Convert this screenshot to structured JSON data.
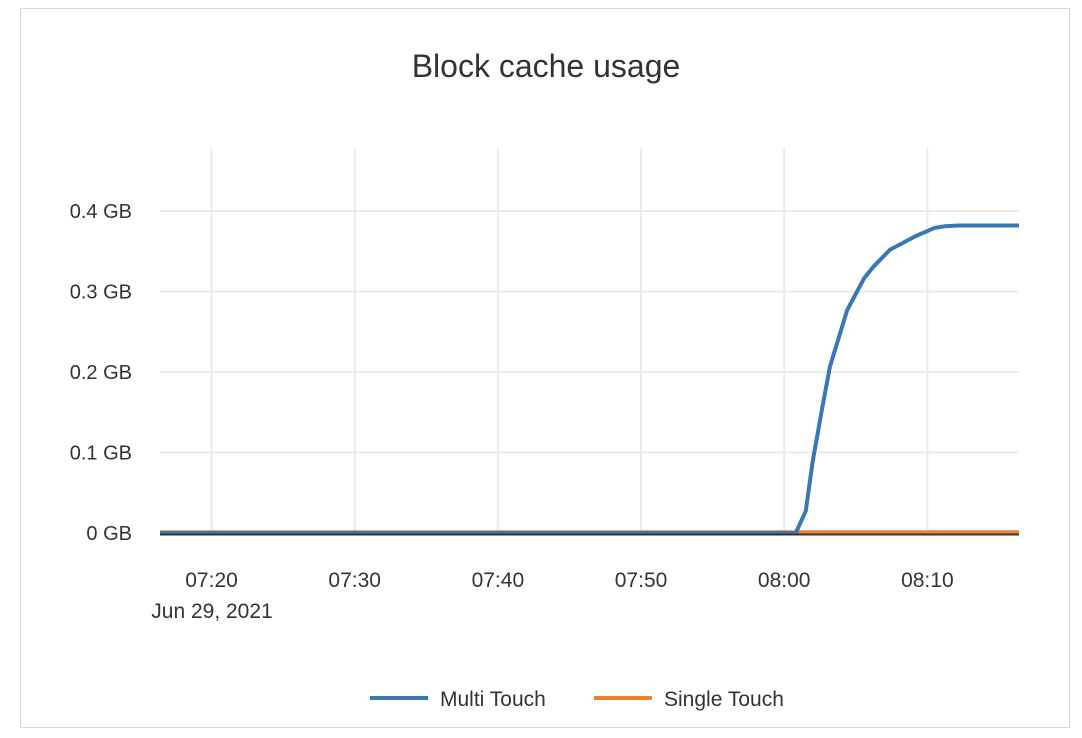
{
  "chart_data": {
    "type": "line",
    "title": "Block cache usage",
    "xlabel": "",
    "ylabel": "",
    "date_label": "Jun 29, 2021",
    "xlim": [
      "07:16:24",
      "08:16:24"
    ],
    "ylim": [
      0,
      0.4
    ],
    "y_unit": "GB",
    "x_ticks": [
      "07:20",
      "07:30",
      "07:40",
      "07:50",
      "08:00",
      "08:10"
    ],
    "y_ticks": [
      0,
      0.1,
      0.2,
      0.3,
      0.4
    ],
    "y_tick_labels": [
      "0 GB",
      "0.1 GB",
      "0.2 GB",
      "0.3 GB",
      "0.4 GB"
    ],
    "grid": true,
    "legend_position": "bottom",
    "series": [
      {
        "name": "Multi Touch",
        "color": "#3a78b5",
        "points": [
          [
            "07:16:24",
            0
          ],
          [
            "08:00:48",
            0
          ],
          [
            "08:01:30",
            0.027
          ],
          [
            "08:02:00",
            0.09
          ],
          [
            "08:02:42",
            0.16
          ],
          [
            "08:03:12",
            0.207
          ],
          [
            "08:04:24",
            0.277
          ],
          [
            "08:05:36",
            0.317
          ],
          [
            "08:06:18",
            0.332
          ],
          [
            "08:07:24",
            0.352
          ],
          [
            "08:09:12",
            0.369
          ],
          [
            "08:10:30",
            0.379
          ],
          [
            "08:11:12",
            0.381
          ],
          [
            "08:12:12",
            0.382
          ],
          [
            "08:16:24",
            0.382
          ]
        ]
      },
      {
        "name": "Single Touch",
        "color": "#ee8231",
        "points": [
          [
            "07:16:24",
            0.001
          ],
          [
            "08:16:24",
            0.001
          ]
        ]
      }
    ]
  }
}
